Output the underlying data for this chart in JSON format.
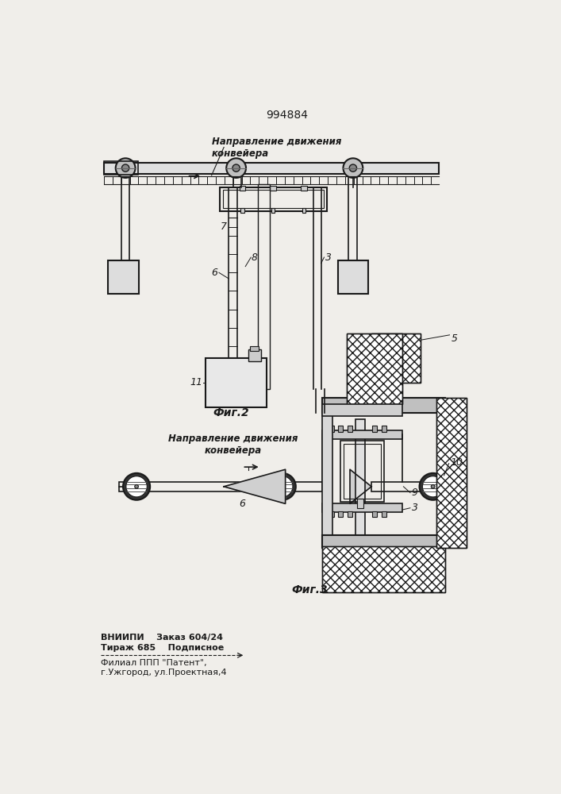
{
  "title": "994884",
  "title_fontsize": 10,
  "bg_color": "#f0eeea",
  "line_color": "#1a1a1a",
  "fig2_label": "Фиг.2",
  "fig3_label": "Фиг.3",
  "direction_label1": "Направление движения\nконвейера",
  "direction_label2": "Направление движения\nконвейера",
  "bottom_text1": "ВНИИПИ    Заказ 604/24",
  "bottom_text2": "Тираж 685    Подписное",
  "bottom_text3": "Филиал ППП \"Патент\",",
  "bottom_text4": "г.Ужгород, ул.Проектная,4"
}
